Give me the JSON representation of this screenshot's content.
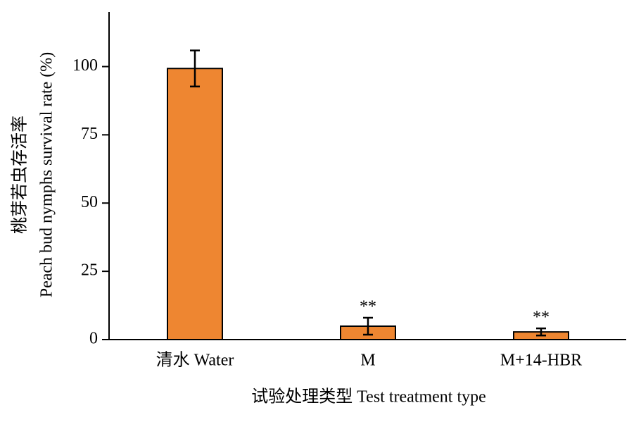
{
  "chart_data": {
    "type": "bar",
    "categories": [
      "清水 Water",
      "M",
      "M+14-HBR"
    ],
    "values": [
      99.3,
      4.9,
      2.8
    ],
    "errors": [
      6.6,
      3.1,
      1.3
    ],
    "significance": [
      null,
      "**",
      "**"
    ],
    "color": "#ee8631",
    "ylim": [
      0,
      120
    ],
    "yticks": [
      0,
      25,
      50,
      75,
      100
    ],
    "ylabel": [
      "桃芽若虫存活率",
      "Peach bud nymphs survival rate (%)"
    ],
    "xlabel": "试验处理类型 Test treatment type",
    "grid": false
  }
}
